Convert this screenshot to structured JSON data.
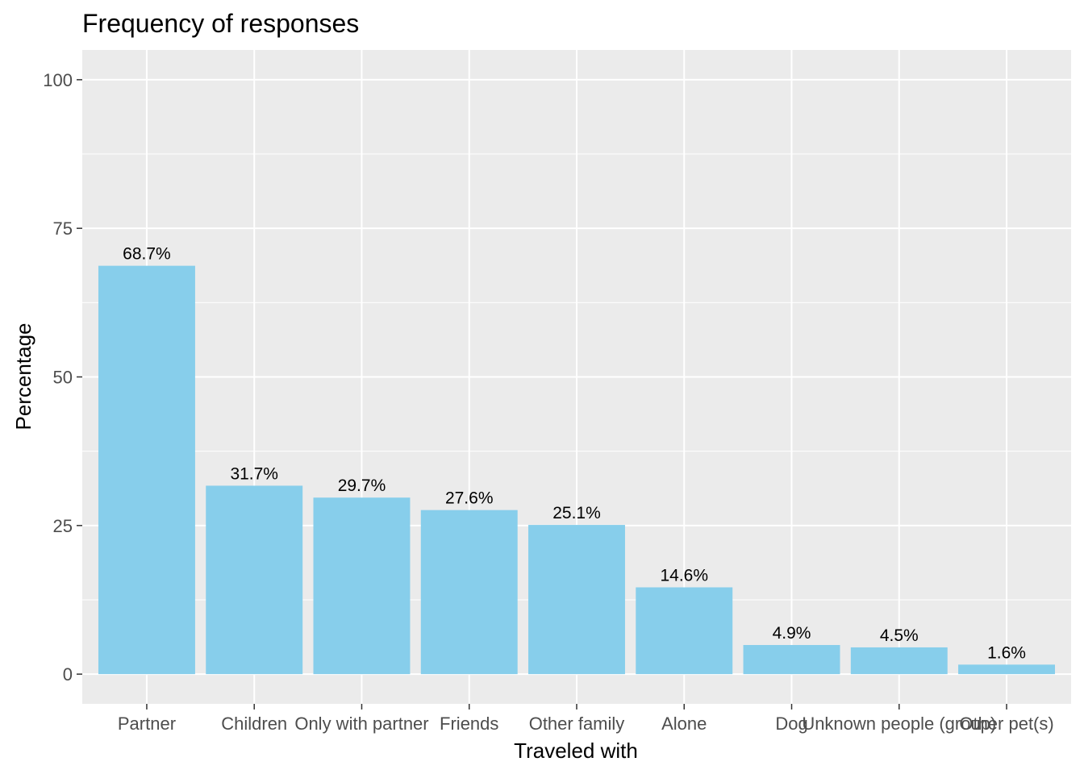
{
  "chart_data": {
    "type": "bar",
    "title": "Frequency of responses",
    "xlabel": "Traveled with",
    "ylabel": "Percentage",
    "categories": [
      "Partner",
      "Children",
      "Only with partner",
      "Friends",
      "Other family",
      "Alone",
      "Dog",
      "Unknown people (group)",
      "Other pet(s)"
    ],
    "values": [
      68.7,
      31.7,
      29.7,
      27.6,
      25.1,
      14.6,
      4.9,
      4.5,
      1.6
    ],
    "data_labels": [
      "68.7%",
      "31.7%",
      "29.7%",
      "27.6%",
      "25.1%",
      "14.6%",
      "4.9%",
      "4.5%",
      "1.6%"
    ],
    "yticks": [
      0,
      25,
      50,
      75,
      100
    ],
    "ylim": [
      -5,
      105
    ],
    "grid": true,
    "legend": "none",
    "colors": {
      "bar": "#87ceeb",
      "panel": "#ebebeb",
      "grid": "#ffffff",
      "tick": "#333333"
    }
  }
}
